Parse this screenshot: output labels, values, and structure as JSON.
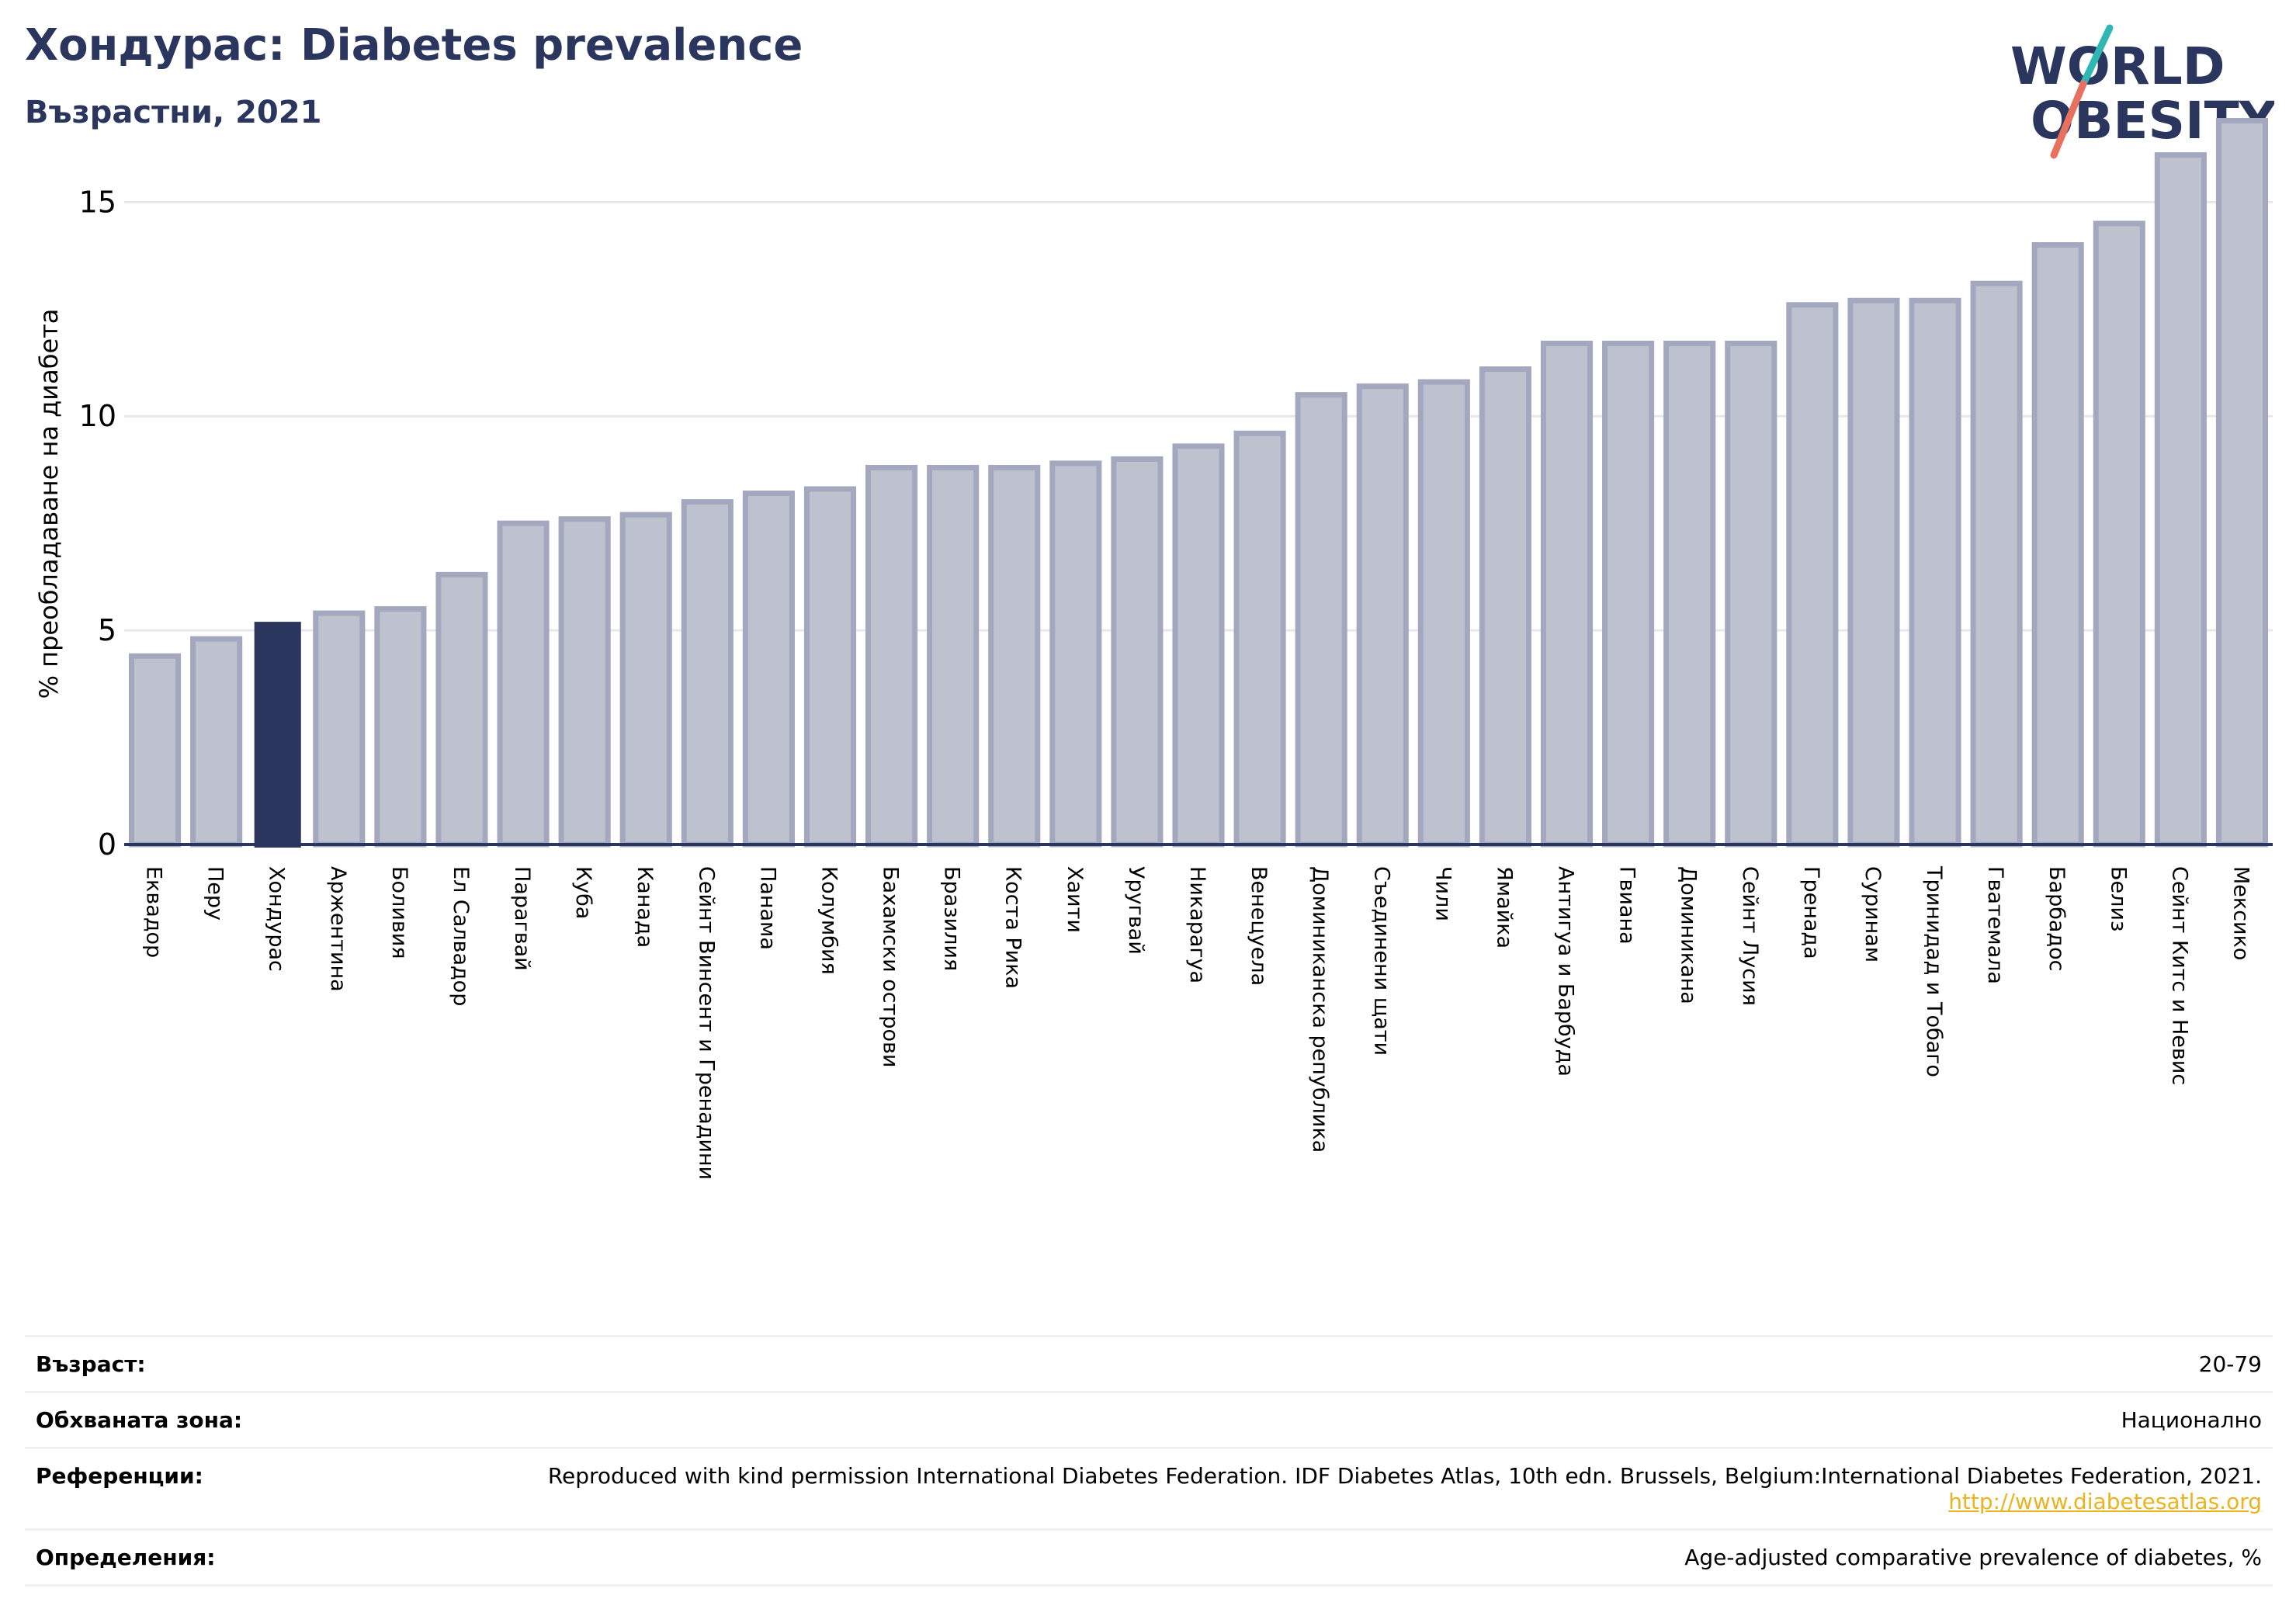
{
  "header": {
    "title": "Хондурас: Diabetes prevalence",
    "subtitle": "Възрастни, 2021"
  },
  "logo": {
    "line1": "WORLD",
    "line2": "OBESITY"
  },
  "chart_data": {
    "type": "bar",
    "ylabel": "% преобладаване на диабета",
    "ylim": [
      0,
      17
    ],
    "yticks": [
      0,
      5,
      10,
      15
    ],
    "grid": true,
    "highlight": "Хондурас",
    "colors": {
      "bar": "#bec1ce",
      "bar_edge": "#a3a8bf",
      "highlight": "#2b365e",
      "grid": "#e6e8ee",
      "axis": "#2b365e"
    },
    "categories": [
      "Еквадор",
      "Перу",
      "Хондурас",
      "Аржентина",
      "Боливия",
      "Ел Салвадор",
      "Парагвай",
      "Куба",
      "Канада",
      "Сейнт Винсент и Гренадини",
      "Панама",
      "Колумбия",
      "Бахамски острови",
      "Бразилия",
      "Коста Рика",
      "Хаити",
      "Уругвай",
      "Никарагуа",
      "Венецуела",
      "Доминиканска република",
      "Съединени щати",
      "Чили",
      "Ямайка",
      "Антигуа и Барбуда",
      "Гвиана",
      "Доминикана",
      "Сейнт Лусия",
      "Гренада",
      "Суринам",
      "Тринидад и Тобаго",
      "Гватемала",
      "Барбадос",
      "Белиз",
      "Сейнт Китс и Невис",
      "Мексико"
    ],
    "values": [
      4.4,
      4.8,
      5.2,
      5.4,
      5.5,
      6.3,
      7.5,
      7.6,
      7.7,
      8.0,
      8.2,
      8.3,
      8.8,
      8.8,
      8.8,
      8.9,
      9.0,
      9.3,
      9.6,
      10.5,
      10.7,
      10.8,
      11.1,
      11.7,
      11.7,
      11.7,
      11.7,
      12.6,
      12.7,
      12.7,
      13.1,
      14.0,
      14.5,
      16.1,
      16.9
    ]
  },
  "info": {
    "rows": [
      {
        "label": "Възраст:",
        "value": "20-79"
      },
      {
        "label": "Обхваната зона:",
        "value": "Национално"
      },
      {
        "label": "Референции:",
        "value": "Reproduced with kind permission International Diabetes Federation.  IDF Diabetes Atlas, 10th edn. Brussels, Belgium:International Diabetes Federation, 2021. ",
        "link": "http://www.diabetesatlas.org"
      },
      {
        "label": "Определения:",
        "value": "Age-adjusted comparative prevalence of diabetes, %"
      }
    ]
  }
}
